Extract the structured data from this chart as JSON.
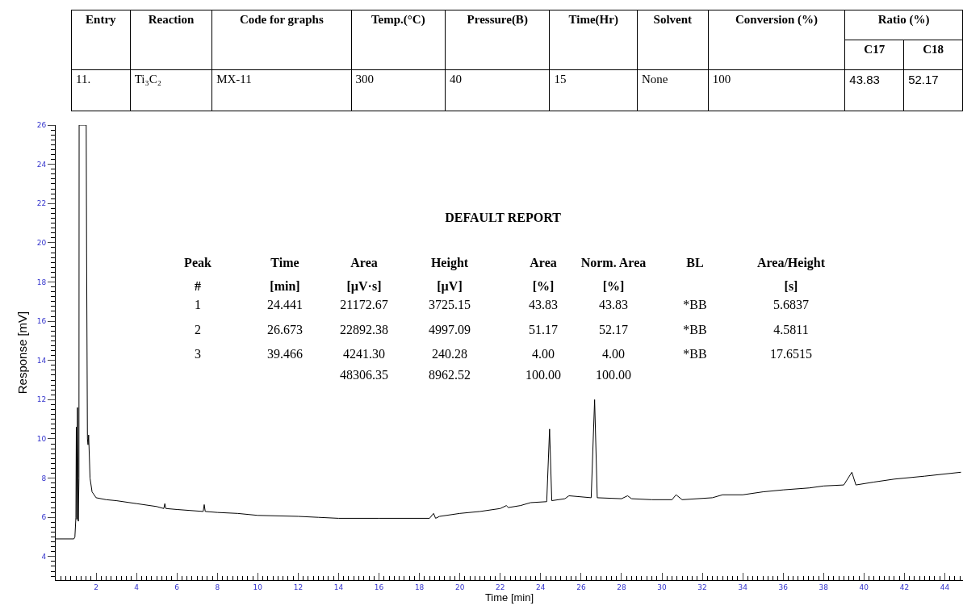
{
  "chart_data": [
    {
      "type": "other",
      "annotations": [
        "Entry\tReaction\tCode for graphs\tTemp.(°C)\tPressure(B)\tTime(Hr)\tSolvent\tConversion (%)\tRatio (%)",
        "C17\tC18",
        "11.\tTi₃C₂\tMX-11\t300\t40\t15\tNone\t100\t43.83\t52.17"
      ]
    },
    {
      "type": "line",
      "xlabel": "Time [min]",
      "ylabel": "Response [mV]",
      "xlim": [
        0,
        44.9
      ],
      "ylim": [
        2.8,
        26
      ],
      "xticks": [
        2,
        4,
        6,
        8,
        10,
        12,
        14,
        16,
        18,
        20,
        22,
        24,
        26,
        28,
        30,
        32,
        34,
        36,
        38,
        40,
        42,
        44
      ],
      "yticks": [
        4,
        6,
        8,
        10,
        12,
        14,
        16,
        18,
        20,
        22,
        24,
        26
      ],
      "marker": "none",
      "line_style": "solid",
      "annotations": [
        "DEFAULT REPORT",
        "Peak\tTime\tArea\tHeight\tArea\tNorm. Area\tBL\tArea/Height",
        "#\t[min]\t[µV·s]\t[µV]\t[%]\t[%]\t\t[s]",
        "1\t24.441\t21172.67\t3725.15\t43.83\t43.83\t*BB\t5.6837",
        "2\t26.673\t22892.38\t4997.09\t51.17\t52.17\t*BB\t4.5811",
        "3\t39.466\t4241.30\t240.28\t4.00\t4.00\t*BB\t17.6515",
        "\t\t48306.35\t8962.52\t100.00\t100.00\t\t"
      ],
      "series": [
        {
          "color": "#000000",
          "x": [
            0,
            0.9,
            0.95,
            1.0,
            1.02,
            1.05,
            1.08,
            1.12,
            1.15,
            1.16,
            1.17,
            1.2,
            1.4,
            1.5,
            1.51,
            1.53,
            1.57,
            1.6,
            1.63,
            1.7,
            1.8,
            2.0,
            2.5,
            3,
            4,
            5,
            5.35,
            5.4,
            5.45,
            6,
            7.3,
            7.35,
            7.4,
            8,
            9,
            10,
            12,
            13,
            14,
            16,
            18.5,
            18.7,
            18.8,
            19,
            20,
            21,
            22,
            22.3,
            22.4,
            23,
            23.5,
            24.3,
            24.44,
            24.55,
            25.2,
            25.4,
            26.5,
            26.67,
            26.8,
            28,
            28.3,
            28.5,
            29.5,
            30.5,
            30.7,
            31,
            32.5,
            33,
            34,
            35,
            36,
            37.3,
            38,
            39,
            39.4,
            39.6,
            40.5,
            41.5,
            43,
            44.8
          ],
          "values": [
            4.9,
            4.9,
            5.0,
            6.0,
            10.6,
            5.9,
            11.6,
            5.8,
            8.0,
            26,
            26,
            26,
            26,
            26,
            26,
            19.5,
            10,
            9.7,
            10.2,
            8,
            7.3,
            7.0,
            6.9,
            6.85,
            6.7,
            6.55,
            6.45,
            6.7,
            6.45,
            6.4,
            6.3,
            6.65,
            6.3,
            6.25,
            6.2,
            6.1,
            6.05,
            6.0,
            5.95,
            5.95,
            5.95,
            6.2,
            5.95,
            6.05,
            6.2,
            6.3,
            6.45,
            6.6,
            6.5,
            6.6,
            6.75,
            6.8,
            10.5,
            6.85,
            6.95,
            7.1,
            7.0,
            12,
            7.0,
            6.95,
            7.1,
            6.95,
            6.9,
            6.9,
            7.15,
            6.9,
            7.0,
            7.15,
            7.15,
            7.3,
            7.4,
            7.5,
            7.6,
            7.65,
            8.3,
            7.65,
            7.8,
            7.95,
            8.1,
            8.3
          ]
        }
      ]
    }
  ]
}
